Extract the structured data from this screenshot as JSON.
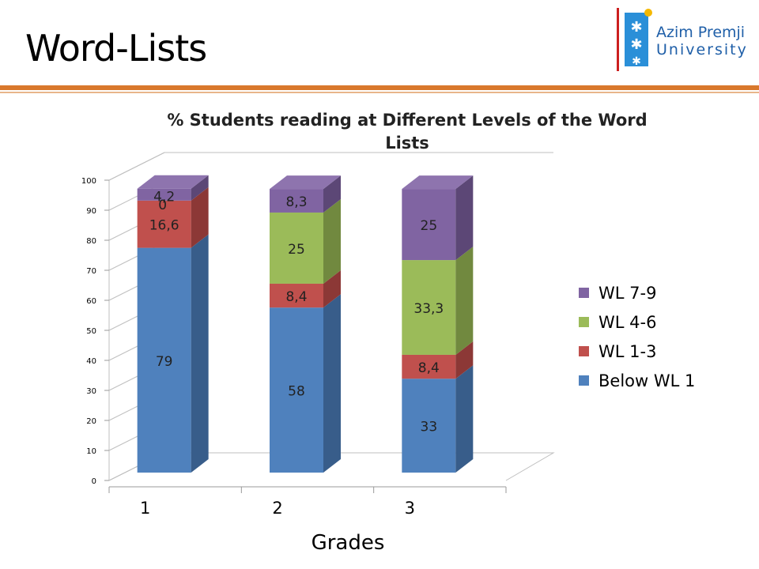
{
  "slide": {
    "title": "Word-Lists"
  },
  "logo": {
    "line1": "Azim Premji",
    "line2": "University"
  },
  "colors": {
    "below_wl1": "#4f81bd",
    "wl_1_3": "#c0504d",
    "wl_4_6": "#9bbb59",
    "wl_7_9": "#8064a2",
    "accent_rule": "#d9782c"
  },
  "chart_data": {
    "type": "bar",
    "stacked": true,
    "title": "% Students reading at Different Levels of the Word Lists",
    "xlabel": "Grades",
    "ylabel": "",
    "categories": [
      "1",
      "2",
      "3"
    ],
    "ylim": [
      0,
      100
    ],
    "yticks": [
      "0",
      "10",
      "20",
      "30",
      "40",
      "50",
      "60",
      "70",
      "80",
      "90",
      "100"
    ],
    "legend_position": "right",
    "series": [
      {
        "name": "Below WL 1",
        "values": [
          79,
          58,
          33
        ],
        "labels": [
          "79",
          "58",
          "33"
        ]
      },
      {
        "name": "WL 1-3",
        "values": [
          16.6,
          8.4,
          8.4
        ],
        "labels": [
          "16,6",
          "8,4",
          "8,4"
        ]
      },
      {
        "name": "WL 4-6",
        "values": [
          0,
          25,
          33.3
        ],
        "labels": [
          "0",
          "25",
          "33,3"
        ]
      },
      {
        "name": "WL 7-9",
        "values": [
          4.2,
          8.3,
          25
        ],
        "labels": [
          "4,2",
          "8,3",
          "25"
        ]
      }
    ]
  }
}
